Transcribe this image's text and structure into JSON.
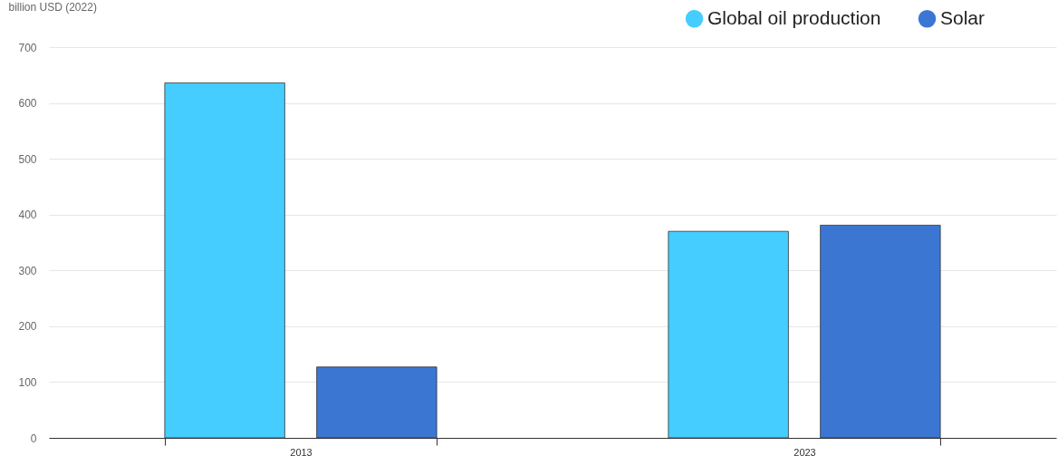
{
  "chart_data": {
    "type": "bar",
    "ylabel": "billion USD (2022)",
    "categories": [
      "2013",
      "2023"
    ],
    "series": [
      {
        "name": "Global oil production",
        "color": "#45cdff",
        "values": [
          636,
          370
        ]
      },
      {
        "name": "Solar",
        "color": "#3b76d3",
        "values": [
          127,
          381
        ]
      }
    ],
    "ylim": [
      0,
      700
    ],
    "yticks": [
      0,
      100,
      200,
      300,
      400,
      500,
      600,
      700
    ],
    "grid": "y",
    "legend": "top right"
  }
}
